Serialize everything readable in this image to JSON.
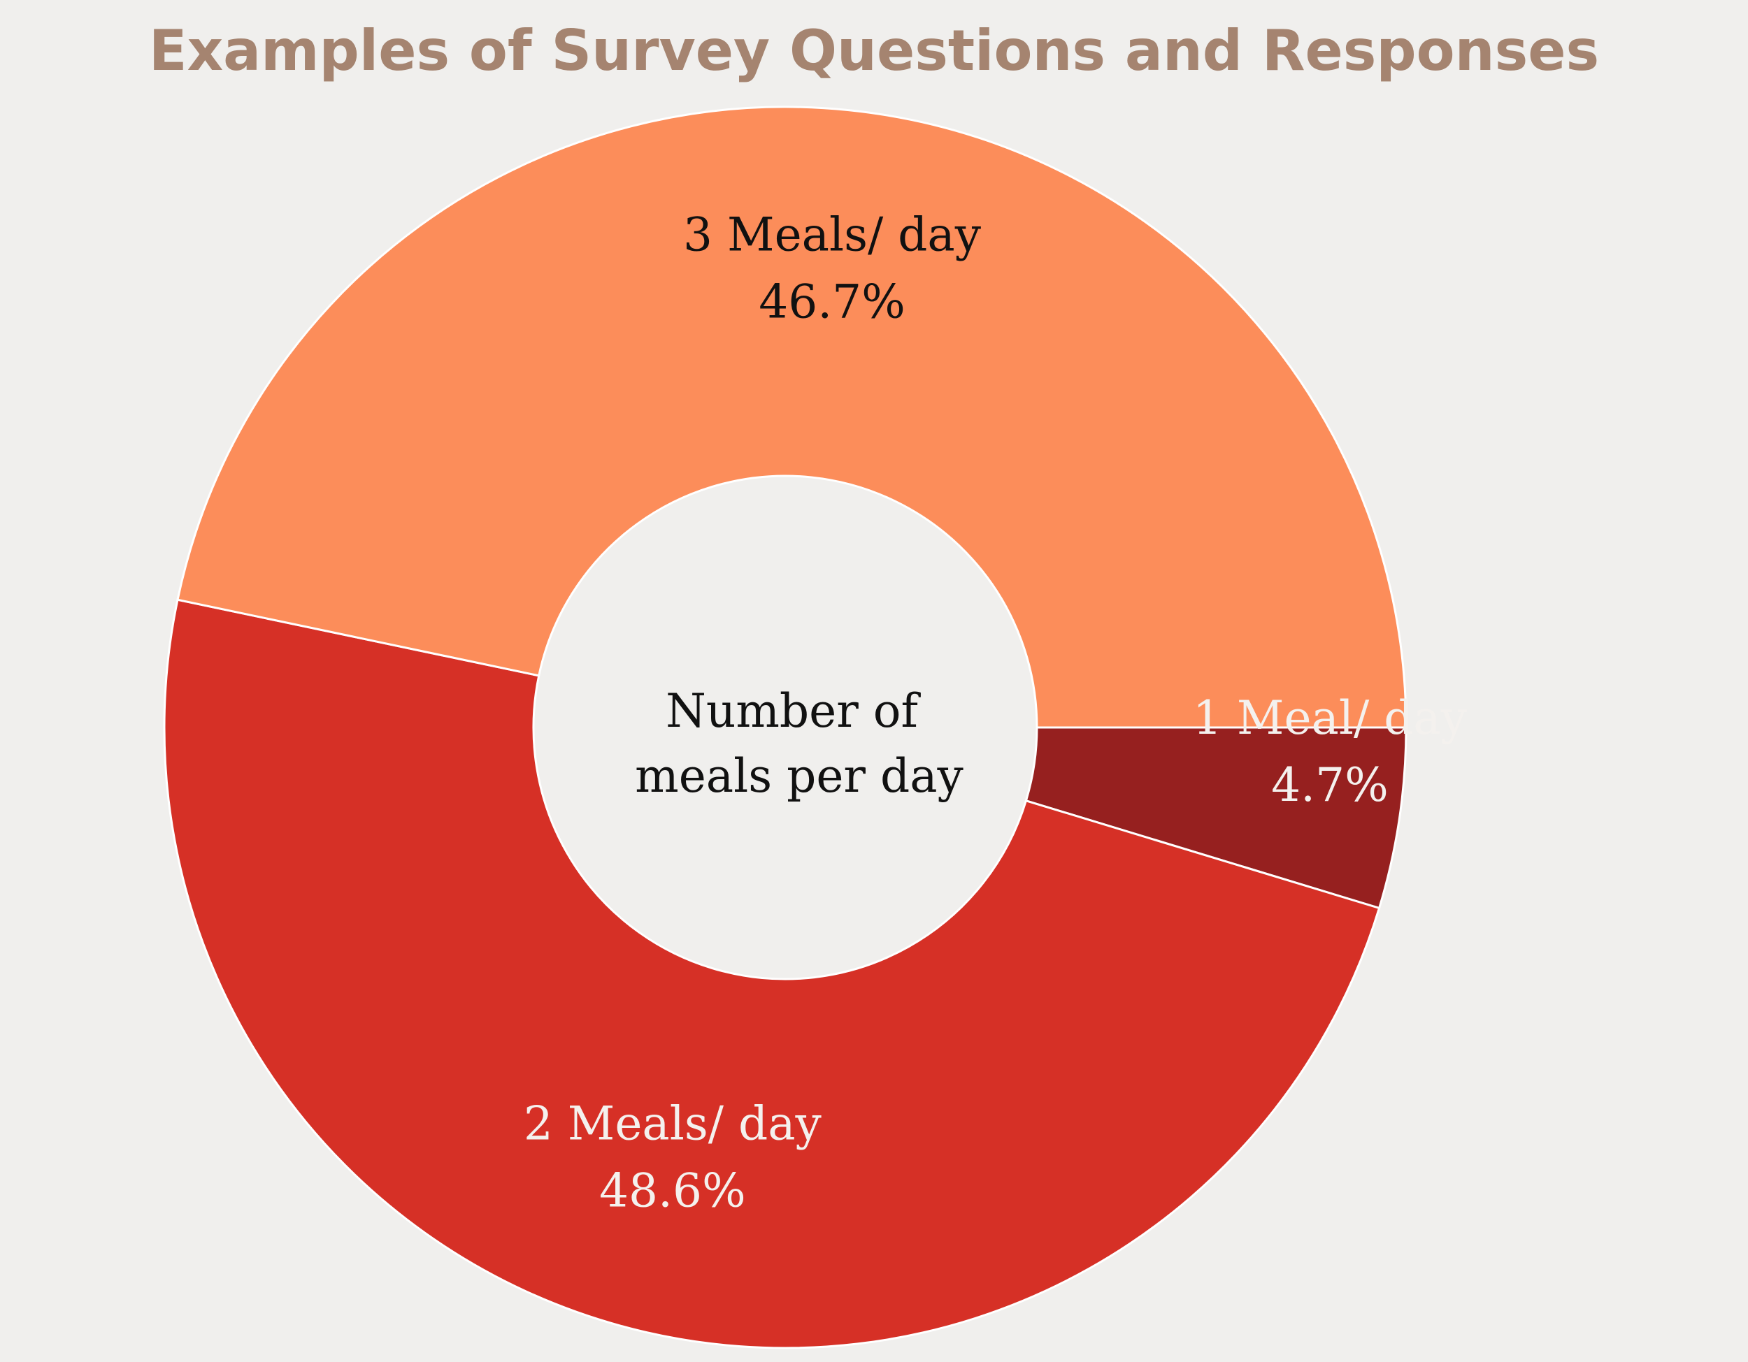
{
  "chart_data": {
    "type": "pie",
    "title": "Examples of Survey Questions and Responses",
    "center_label": [
      "Number of",
      "meals per day"
    ],
    "slices": [
      {
        "label": "1 Meal/ day",
        "value": 4.7,
        "display": "4.7%",
        "color": "#96201f",
        "text_color": "#f4f1ee"
      },
      {
        "label": "2 Meals/ day",
        "value": 48.6,
        "display": "48.6%",
        "color": "#d63026",
        "text_color": "#f4f1ee"
      },
      {
        "label": "3 Meals/ day",
        "value": 46.7,
        "display": "46.7%",
        "color": "#fc8d5a",
        "text_color": "#111111"
      }
    ],
    "colors": {
      "background": "#f0efed",
      "title": "#a58470",
      "slice_border": "#ffffff"
    }
  }
}
